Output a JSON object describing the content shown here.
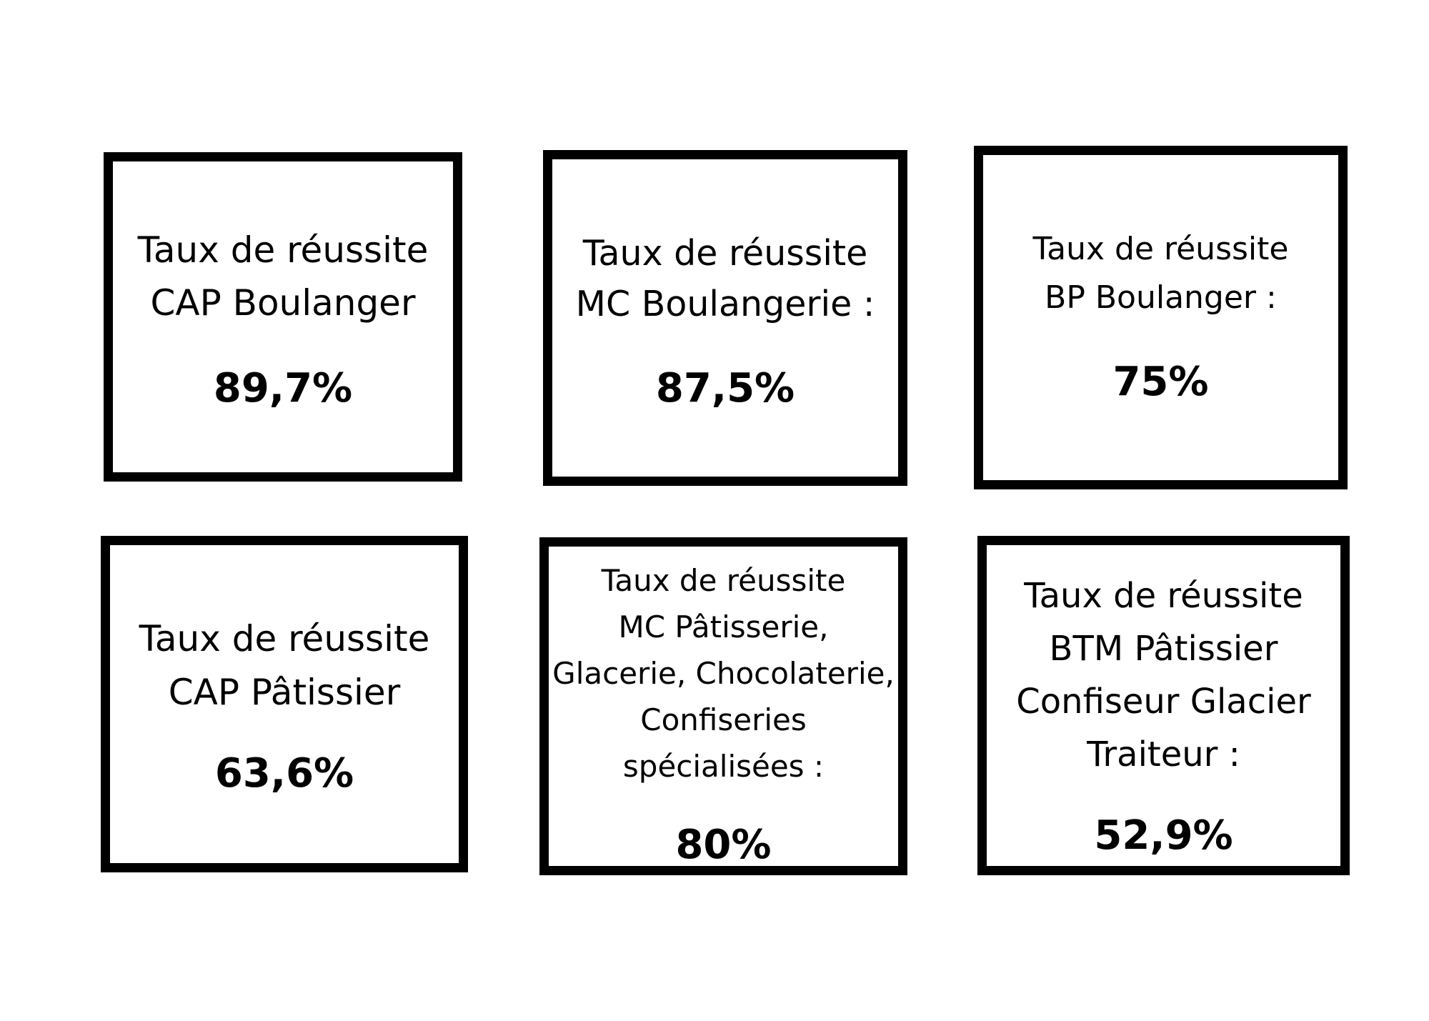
{
  "cards": [
    {
      "lines": [
        "Taux de réussite",
        "CAP Boulanger"
      ],
      "value": "89,7%"
    },
    {
      "lines": [
        "Taux de réussite",
        "MC Boulangerie :"
      ],
      "value": "87,5%"
    },
    {
      "lines": [
        "Taux de réussite",
        "BP Boulanger :"
      ],
      "value": "75%"
    },
    {
      "lines": [
        "Taux de réussite",
        "CAP Pâtissier"
      ],
      "value": "63,6%"
    },
    {
      "lines": [
        "Taux de réussite",
        "MC Pâtisserie,",
        "Glacerie, Chocolaterie,",
        "Confiseries",
        "spécialisées :"
      ],
      "value": "80%"
    },
    {
      "lines": [
        "Taux de réussite",
        "BTM Pâtissier",
        "Confiseur Glacier",
        "Traiteur :"
      ],
      "value": "52,9%"
    }
  ],
  "colors": {
    "background": "#ffffff",
    "border": "#000000",
    "text": "#000000"
  }
}
